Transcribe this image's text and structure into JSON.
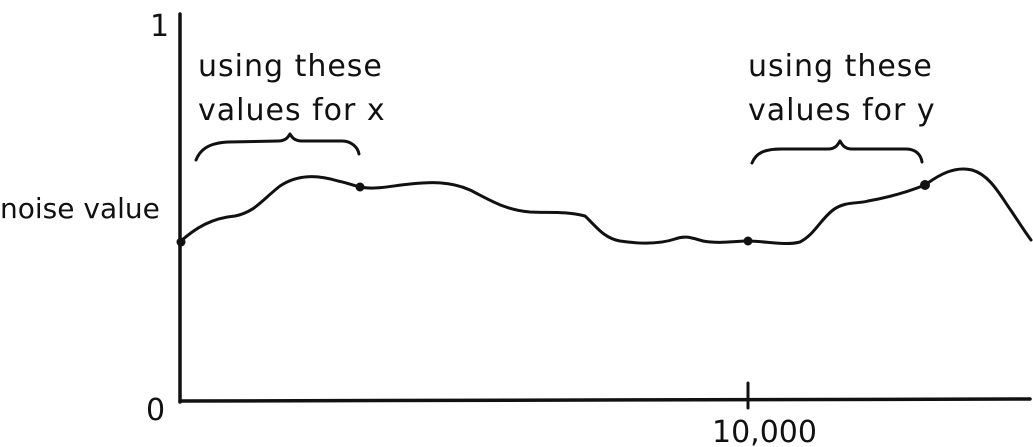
{
  "axes": {
    "y_label": "noise value",
    "y_top_tick": "1",
    "y_bottom_tick": "0",
    "x_tick": "10,000"
  },
  "annotations": [
    {
      "line1": "using these",
      "line2": "values for x"
    },
    {
      "line1": "using these",
      "line2": "values for y"
    }
  ],
  "colors": {
    "ink": "#111111",
    "background": "#ffffff"
  }
}
